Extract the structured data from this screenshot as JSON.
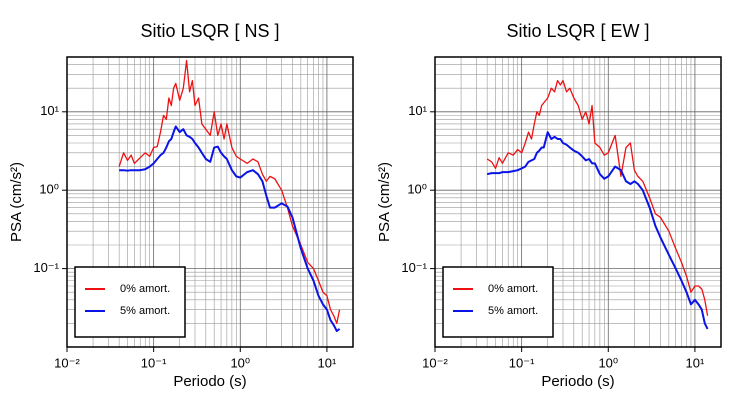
{
  "chart_data": [
    {
      "type": "line",
      "title": "Sitio LSQR [ NS ]",
      "x_label": "Periodo (s)",
      "y_label": "PSA (cm/s²)",
      "log_x": true,
      "log_y": true,
      "grid": true,
      "legend": "lower left",
      "xlim": [
        0.01,
        20
      ],
      "ylim": [
        0.01,
        50
      ],
      "xticks": [
        {
          "value": 0.01,
          "label": "10⁻²"
        },
        {
          "value": 0.1,
          "label": "10⁻¹"
        },
        {
          "value": 1,
          "label": "10⁰"
        },
        {
          "value": 10,
          "label": "10¹"
        }
      ],
      "yticks": [
        {
          "value": 0.1,
          "label": "10⁻¹"
        },
        {
          "value": 1,
          "label": "10⁰"
        },
        {
          "value": 10,
          "label": "10¹"
        }
      ],
      "x": [
        0.04,
        0.045,
        0.05,
        0.055,
        0.06,
        0.07,
        0.08,
        0.09,
        0.1,
        0.11,
        0.12,
        0.13,
        0.14,
        0.15,
        0.16,
        0.17,
        0.18,
        0.2,
        0.22,
        0.24,
        0.26,
        0.28,
        0.3,
        0.33,
        0.36,
        0.4,
        0.45,
        0.5,
        0.55,
        0.6,
        0.65,
        0.7,
        0.8,
        0.9,
        1.0,
        1.2,
        1.4,
        1.6,
        1.8,
        2.0,
        2.2,
        2.5,
        3.0,
        3.5,
        4,
        5,
        6,
        7,
        8,
        9,
        10,
        11,
        12,
        13,
        14
      ],
      "series": [
        {
          "name": "0% amort.",
          "color": "#ee1111",
          "values": [
            2.0,
            3.0,
            2.4,
            2.8,
            2.2,
            2.6,
            3.0,
            2.7,
            3.5,
            3.6,
            5.5,
            9,
            8,
            15,
            12,
            20,
            23,
            14,
            20,
            45,
            18,
            25,
            12,
            15,
            7,
            6,
            5,
            10,
            5,
            7,
            4.5,
            7,
            3.5,
            2.7,
            2.5,
            2.2,
            2.5,
            2.3,
            1.6,
            1.3,
            1.5,
            1.4,
            1.0,
            0.6,
            0.35,
            0.2,
            0.12,
            0.1,
            0.07,
            0.05,
            0.045,
            0.03,
            0.025,
            0.02,
            0.03
          ]
        },
        {
          "name": "5% amort.",
          "color": "#0a14e6",
          "values": [
            1.8,
            1.8,
            1.78,
            1.8,
            1.8,
            1.8,
            1.85,
            2.0,
            2.2,
            2.5,
            2.8,
            3.0,
            3.5,
            4.2,
            4.5,
            5.5,
            6.5,
            5.5,
            6.0,
            5.0,
            4.8,
            4.5,
            4.0,
            3.5,
            3.0,
            2.5,
            2.3,
            3.5,
            3.6,
            3.0,
            2.7,
            2.5,
            1.8,
            1.5,
            1.45,
            1.7,
            1.8,
            1.6,
            1.3,
            0.85,
            0.6,
            0.6,
            0.68,
            0.62,
            0.45,
            0.18,
            0.1,
            0.07,
            0.045,
            0.035,
            0.03,
            0.022,
            0.019,
            0.016,
            0.017
          ]
        }
      ]
    },
    {
      "type": "line",
      "title": "Sitio LSQR [ EW ]",
      "x_label": "Periodo (s)",
      "y_label": "PSA (cm/s²)",
      "log_x": true,
      "log_y": true,
      "grid": true,
      "legend": "lower left",
      "xlim": [
        0.01,
        20
      ],
      "ylim": [
        0.01,
        50
      ],
      "xticks": [
        {
          "value": 0.01,
          "label": "10⁻²"
        },
        {
          "value": 0.1,
          "label": "10⁻¹"
        },
        {
          "value": 1,
          "label": "10⁰"
        },
        {
          "value": 10,
          "label": "10¹"
        }
      ],
      "yticks": [
        {
          "value": 0.1,
          "label": "10⁻¹"
        },
        {
          "value": 1,
          "label": "10⁰"
        },
        {
          "value": 10,
          "label": "10¹"
        }
      ],
      "x": [
        0.04,
        0.045,
        0.05,
        0.055,
        0.06,
        0.07,
        0.08,
        0.09,
        0.1,
        0.11,
        0.12,
        0.13,
        0.14,
        0.15,
        0.16,
        0.17,
        0.18,
        0.2,
        0.22,
        0.24,
        0.26,
        0.28,
        0.3,
        0.33,
        0.36,
        0.4,
        0.45,
        0.5,
        0.55,
        0.6,
        0.65,
        0.7,
        0.8,
        0.9,
        1.0,
        1.2,
        1.4,
        1.6,
        1.8,
        2.0,
        2.2,
        2.5,
        3.0,
        3.5,
        4,
        5,
        6,
        7,
        8,
        9,
        10,
        11,
        12,
        13,
        14
      ],
      "series": [
        {
          "name": "0% amort.",
          "color": "#ee1111",
          "values": [
            2.5,
            2.3,
            1.9,
            2.6,
            2.2,
            3.0,
            2.8,
            3.3,
            3.0,
            4.0,
            5.5,
            4.5,
            7,
            10,
            9,
            12,
            13,
            15,
            20,
            18,
            25,
            22,
            25,
            18,
            20,
            15,
            12,
            8,
            10,
            7,
            12,
            4,
            3.5,
            2.8,
            3.0,
            5.0,
            1.5,
            3.5,
            4.0,
            1.8,
            1.5,
            1.3,
            0.8,
            0.5,
            0.45,
            0.3,
            0.18,
            0.12,
            0.08,
            0.05,
            0.06,
            0.06,
            0.055,
            0.04,
            0.025
          ]
        },
        {
          "name": "5% amort.",
          "color": "#0a14e6",
          "values": [
            1.6,
            1.65,
            1.65,
            1.65,
            1.7,
            1.7,
            1.75,
            1.8,
            1.9,
            2.0,
            2.3,
            2.4,
            2.5,
            3.0,
            3.2,
            3.5,
            3.5,
            5.5,
            4.5,
            4.8,
            4.5,
            4.5,
            4.0,
            3.8,
            3.5,
            3.2,
            3.0,
            2.7,
            2.4,
            2.5,
            2.2,
            2.2,
            1.6,
            1.4,
            1.5,
            2.0,
            1.8,
            1.3,
            1.2,
            1.3,
            1.2,
            1.0,
            0.6,
            0.35,
            0.25,
            0.15,
            0.1,
            0.07,
            0.05,
            0.035,
            0.04,
            0.035,
            0.03,
            0.02,
            0.017
          ]
        }
      ]
    }
  ]
}
